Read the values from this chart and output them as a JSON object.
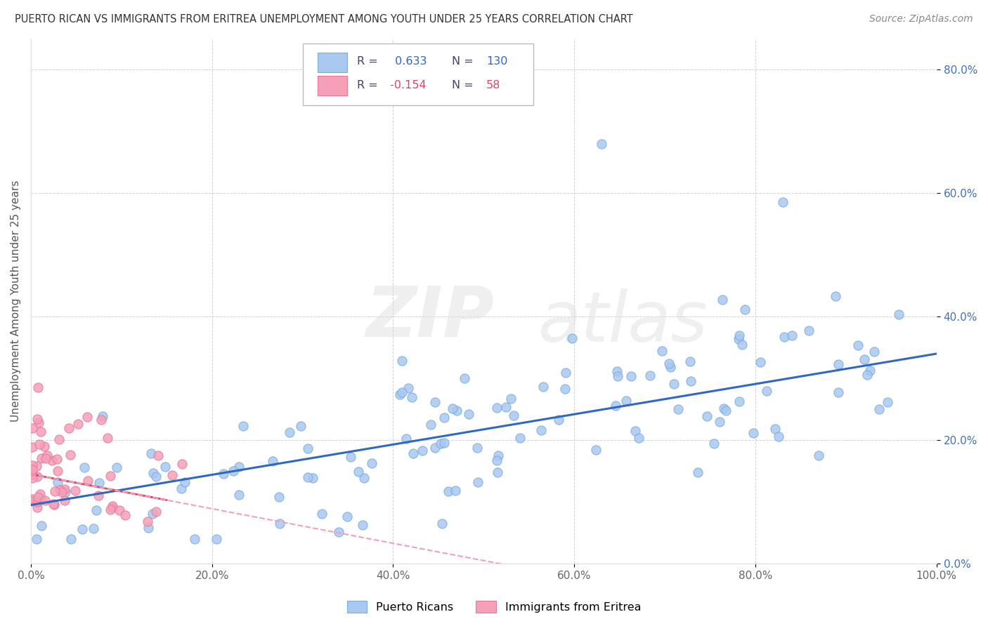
{
  "title": "PUERTO RICAN VS IMMIGRANTS FROM ERITREA UNEMPLOYMENT AMONG YOUTH UNDER 25 YEARS CORRELATION CHART",
  "source": "Source: ZipAtlas.com",
  "ylabel": "Unemployment Among Youth under 25 years",
  "blue_R": 0.633,
  "blue_N": 130,
  "pink_R": -0.154,
  "pink_N": 58,
  "blue_color": "#A8C8F0",
  "pink_color": "#F5A0B8",
  "blue_edge_color": "#7AADD8",
  "pink_edge_color": "#E87898",
  "blue_line_color": "#3068C0",
  "pink_line_color": "#D04868",
  "pink_dash_color": "#F0A0B8",
  "background_color": "#FFFFFF",
  "watermark_zip": "ZIP",
  "watermark_atlas": "atlas",
  "legend_blue": "Puerto Ricans",
  "legend_pink": "Immigrants from Eritrea",
  "xlim": [
    0.0,
    1.0
  ],
  "ylim": [
    0.0,
    0.85
  ],
  "legend_text_color": "#444466",
  "legend_value_color_blue": "#3068C0",
  "legend_value_color_pink": "#D04868"
}
